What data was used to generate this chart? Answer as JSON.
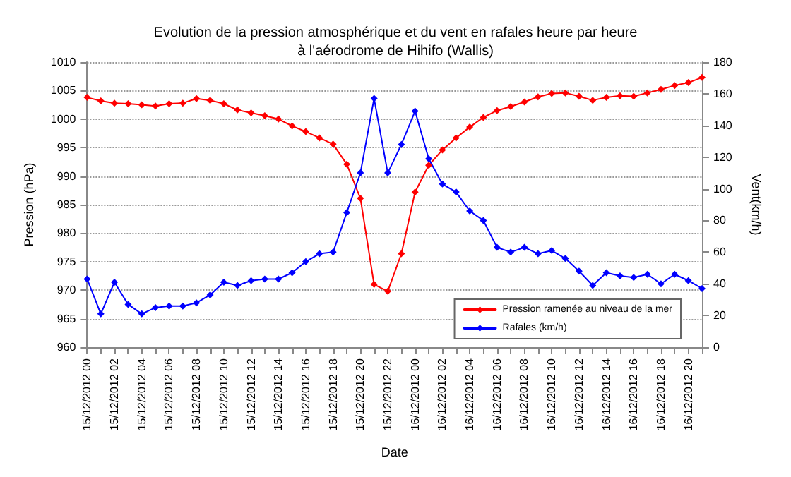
{
  "chart_data": {
    "type": "line",
    "title": "Evolution de la pression atmosphérique et du vent en rafales heure par heure\nà l'aérodrome de Hihifo (Wallis)",
    "xlabel": "Date",
    "ylabel": "Pression (hPa)",
    "y2label": "Vent(km/h)",
    "categories": [
      "15/12/2012 00",
      null,
      "15/12/2012 02",
      null,
      "15/12/2012 04",
      null,
      "15/12/2012 06",
      null,
      "15/12/2012 08",
      null,
      "15/12/2012 10",
      null,
      "15/12/2012 12",
      null,
      "15/12/2012 14",
      null,
      "15/12/2012 16",
      null,
      "15/12/2012 18",
      null,
      "15/12/2012 20",
      null,
      "15/12/2012 22",
      null,
      "16/12/2012 00",
      null,
      "16/12/2012 02",
      null,
      "16/12/2012 04",
      null,
      "16/12/2012 06",
      null,
      "16/12/2012 08",
      null,
      "16/12/2012 10",
      null,
      "16/12/2012 12",
      null,
      "16/12/2012 14",
      null,
      "16/12/2012 16",
      null,
      "16/12/2012 18",
      null,
      "16/12/2012 20",
      null
    ],
    "series": [
      {
        "name": "Pression ramenée au niveau de la mer",
        "color": "#ff0000",
        "values": [
          1003.8,
          1003.2,
          1002.8,
          1002.7,
          1002.5,
          1002.3,
          1002.7,
          1002.8,
          1003.6,
          1003.3,
          1002.7,
          1001.6,
          1001.1,
          1000.6,
          1000.0,
          998.8,
          997.8,
          996.7,
          995.6,
          992.1,
          986.1,
          971.0,
          969.8,
          976.4,
          987.2,
          991.9,
          994.6,
          996.7,
          998.6,
          1000.3,
          1001.5,
          1002.2,
          1003.0,
          1003.9,
          1004.5,
          1004.6,
          1004.0,
          1003.3,
          1003.8,
          1004.1,
          1004.0,
          1004.6,
          1005.2,
          1005.9,
          1006.4,
          1007.3
        ]
      },
      {
        "name": "Rafales (km/h)",
        "color": "#0000ff",
        "axis": "y2",
        "values": [
          43,
          21,
          41,
          27,
          21,
          25,
          26,
          26,
          28,
          33,
          41,
          39,
          42,
          43,
          43,
          47,
          54,
          59,
          60,
          85,
          110,
          157,
          110,
          128,
          149,
          119,
          103,
          98,
          86,
          80,
          63,
          60,
          63,
          59,
          61,
          56,
          48,
          39,
          47,
          45,
          44,
          46,
          40,
          46,
          42,
          37
        ]
      }
    ],
    "ylim": [
      960,
      1010
    ],
    "yticks": [
      960,
      965,
      970,
      975,
      980,
      985,
      990,
      995,
      1000,
      1005,
      1010
    ],
    "y2lim": [
      0,
      180
    ],
    "y2ticks": [
      0,
      20,
      40,
      60,
      80,
      100,
      120,
      140,
      160,
      180
    ],
    "grid": "y",
    "legend": "bottom right",
    "marker": "diamond",
    "line_style": "solid"
  }
}
